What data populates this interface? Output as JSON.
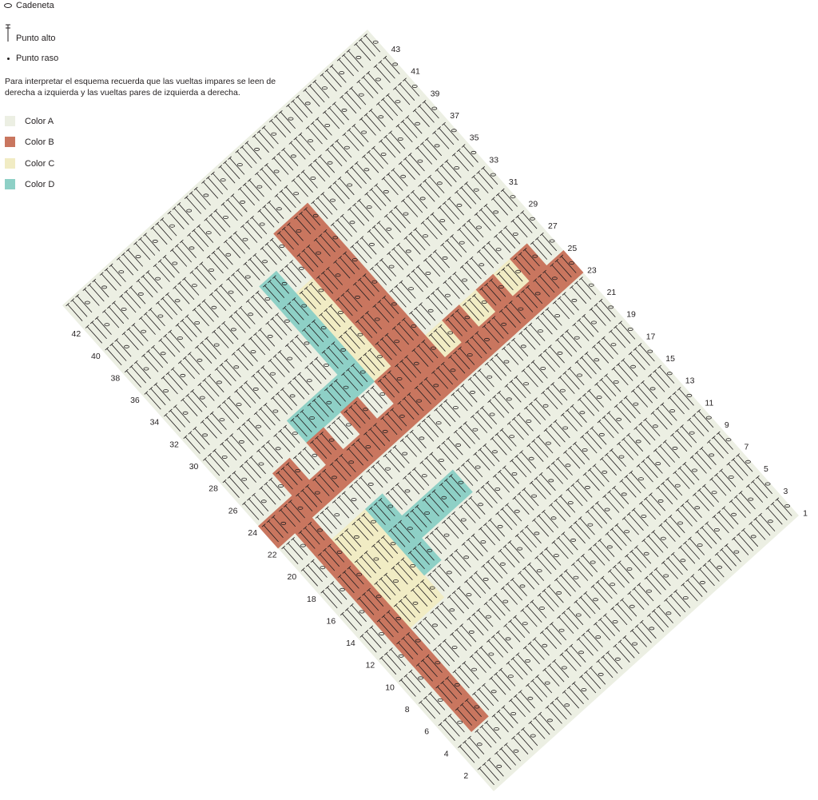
{
  "legend": {
    "chain_label": "Cadeneta",
    "dc_label": "Punto alto",
    "sc_label": "Punto raso"
  },
  "note": "Para interpretar el esquema recuerda que las vueltas impares se leen de derecha a izquierda y las vueltas pares de izquierda a derecha.",
  "colors": [
    {
      "label": "Color A",
      "hex": "#ecefe3"
    },
    {
      "label": "Color B",
      "hex": "#c9765f"
    },
    {
      "label": "Color C",
      "hex": "#f1ecc4"
    },
    {
      "label": "Color D",
      "hex": "#8ed0c6"
    }
  ],
  "row_labels": [
    "1",
    "2",
    "3",
    "4",
    "5",
    "6",
    "7",
    "8",
    "9",
    "10",
    "11",
    "12",
    "13",
    "14",
    "15",
    "16",
    "17",
    "18",
    "19",
    "20",
    "21",
    "22",
    "23",
    "24",
    "25",
    "26",
    "27",
    "28",
    "29",
    "30",
    "31",
    "32",
    "33",
    "34",
    "35",
    "36",
    "37",
    "38",
    "39",
    "40",
    "41",
    "42",
    "43"
  ]
}
